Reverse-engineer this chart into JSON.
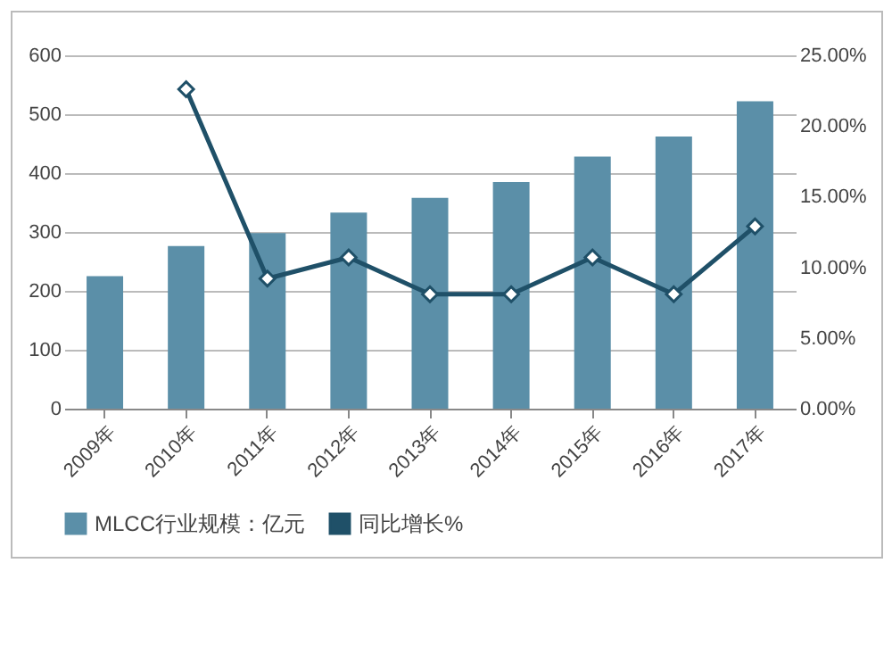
{
  "chart_data": {
    "type": "bar",
    "categories": [
      "2009年",
      "2010年",
      "2011年",
      "2012年",
      "2013年",
      "2014年",
      "2015年",
      "2016年",
      "2017年"
    ],
    "series": [
      {
        "name": "MLCC行业规模：亿元",
        "color": "#5b8fa8",
        "values": [
          225,
          276,
          298,
          333,
          358,
          385,
          428,
          462,
          522
        ]
      },
      {
        "name": "同比增长%",
        "type": "line",
        "axis": "y2",
        "color": "#1f5068",
        "marker": "diamond",
        "values": [
          null,
          22.6,
          9.2,
          10.7,
          8.1,
          8.1,
          10.7,
          8.1,
          12.9
        ]
      }
    ],
    "ylim": [
      0,
      600
    ],
    "yticks": [
      0,
      100,
      200,
      300,
      400,
      500,
      600
    ],
    "y2lim": [
      0,
      25
    ],
    "y2ticks": [
      {
        "value": 0,
        "label": "0.00%"
      },
      {
        "value": 5,
        "label": "5.00%"
      },
      {
        "value": 10,
        "label": "10.00%"
      },
      {
        "value": 15,
        "label": "15.00%"
      },
      {
        "value": 20,
        "label": "20.00%"
      },
      {
        "value": 25,
        "label": "25.00%"
      }
    ],
    "grid": "y",
    "legend": "bottom"
  }
}
